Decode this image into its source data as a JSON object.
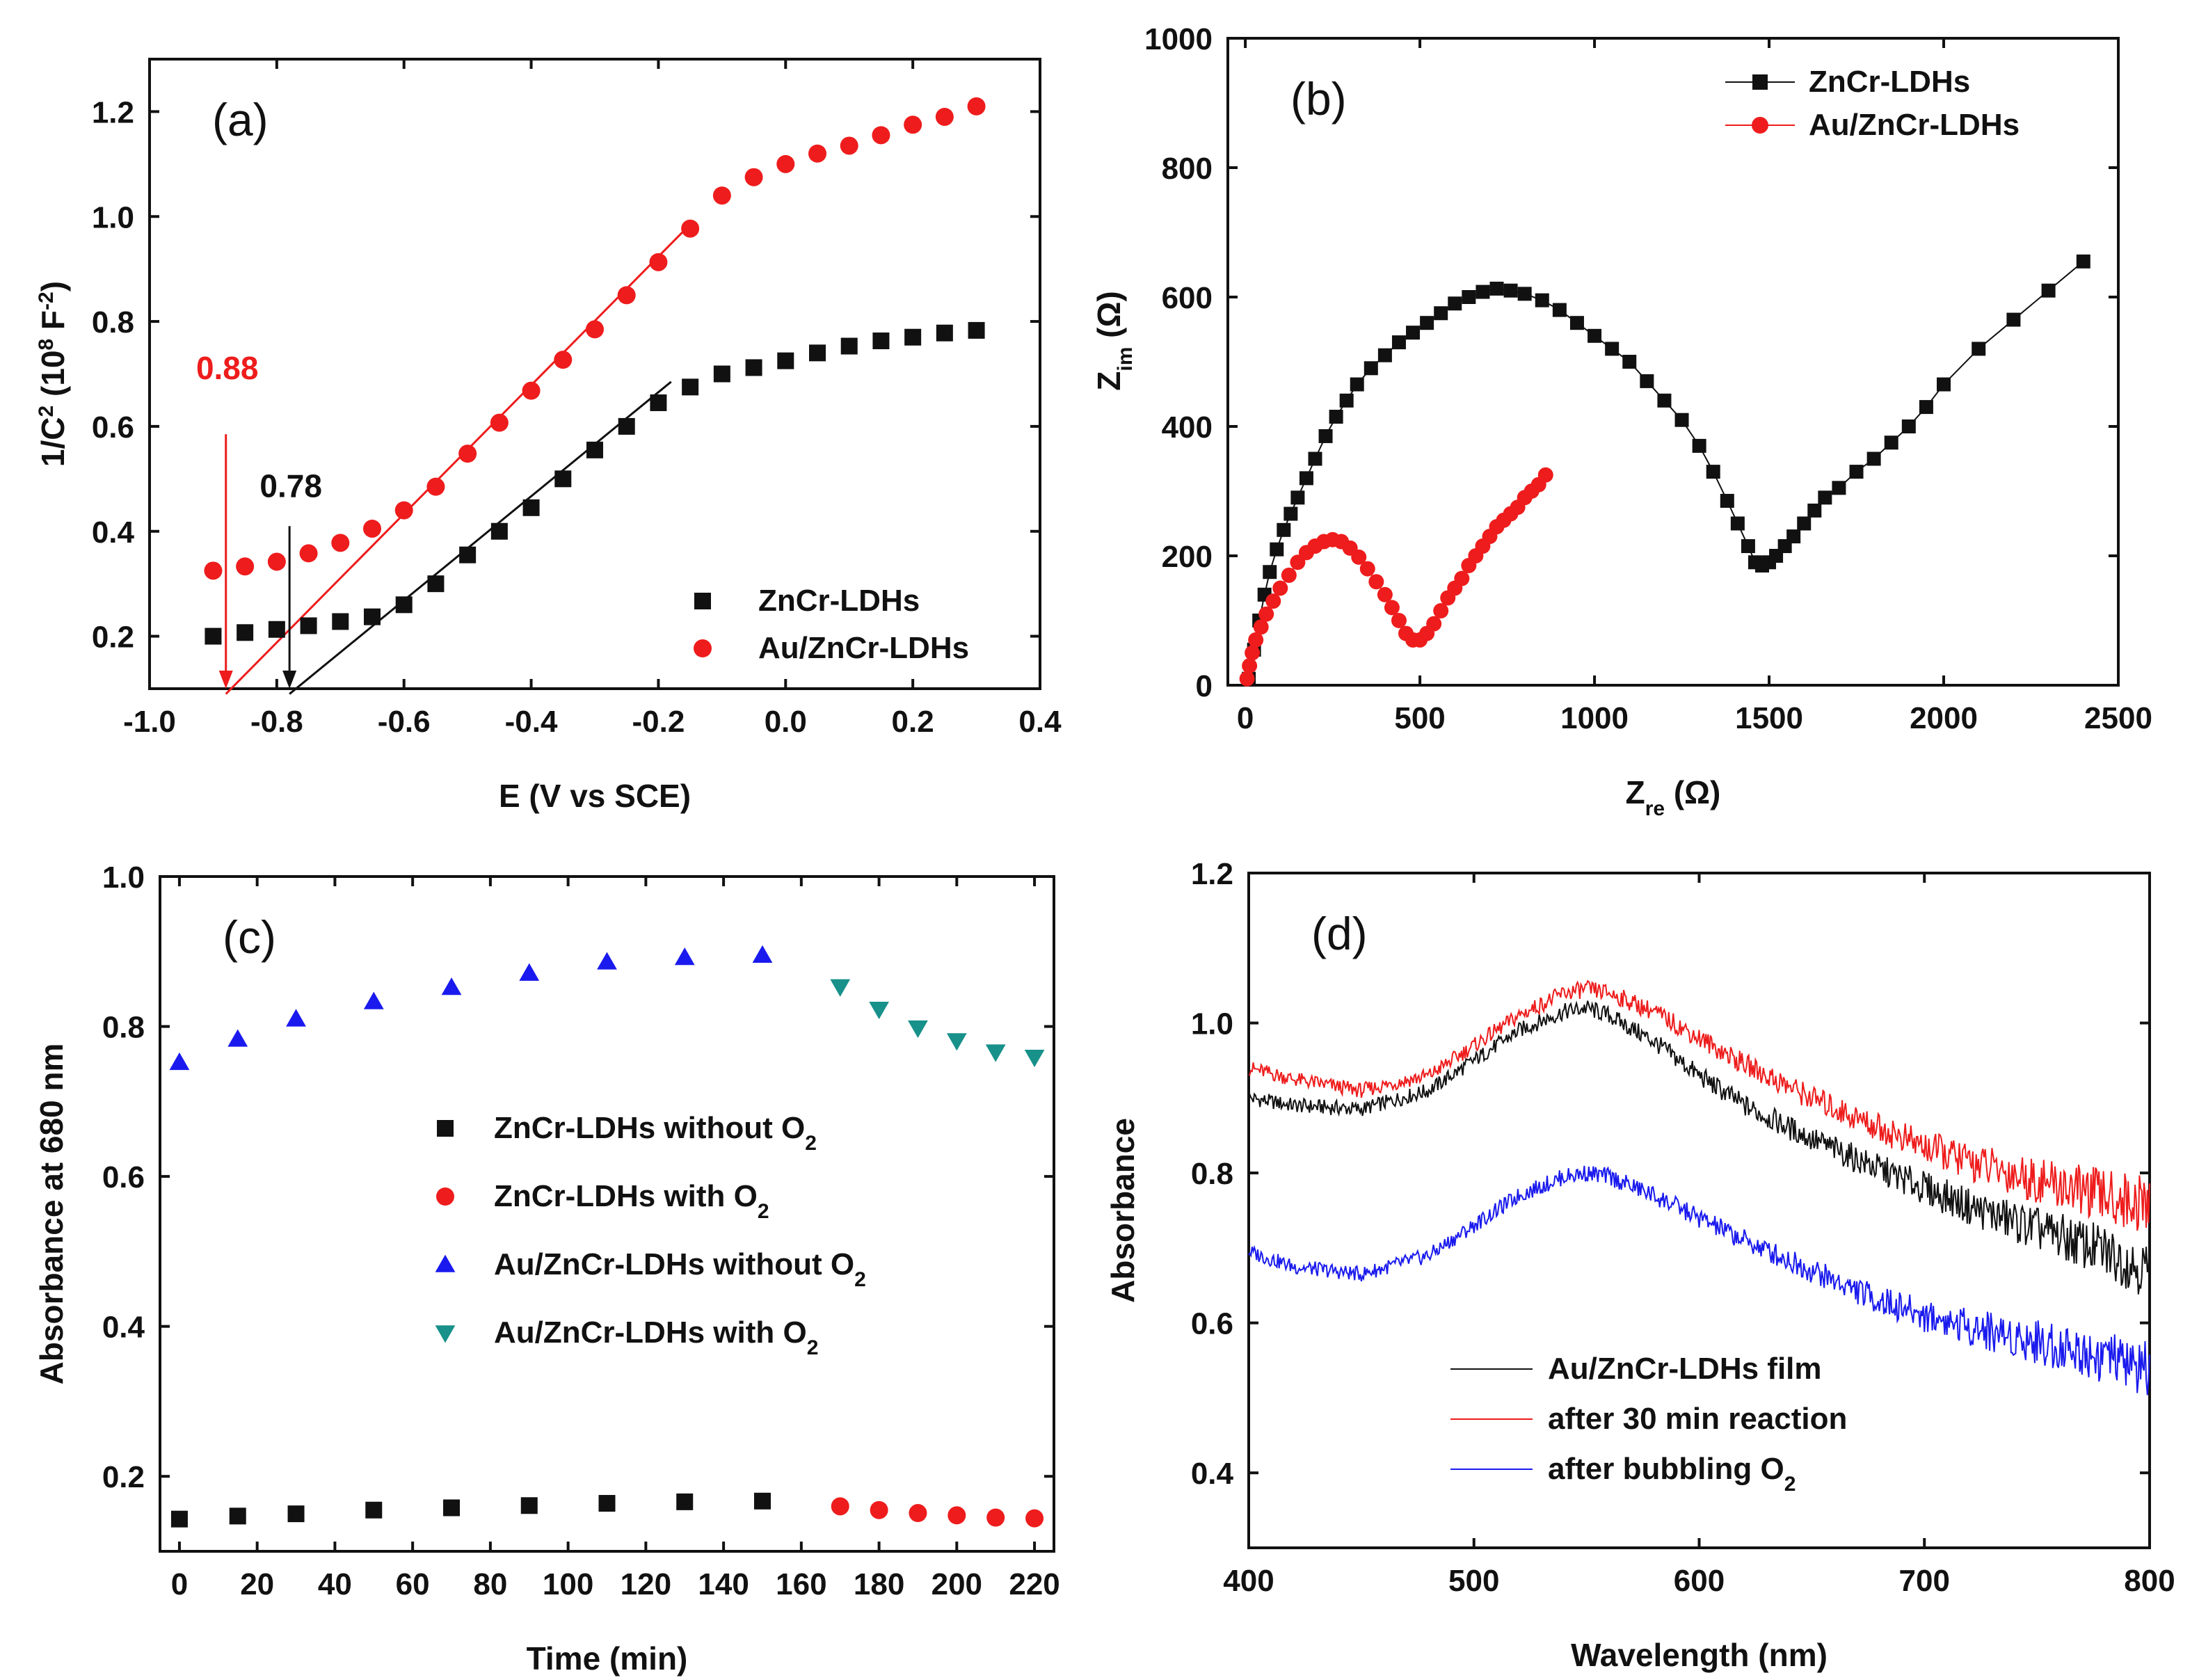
{
  "chart_data": [
    {
      "id": "a",
      "type": "scatter",
      "panel_label": "(a)",
      "xlabel": "E (V vs SCE)",
      "ylabel": "1/C",
      "ylabel_sup": "2",
      "ylabel_units": " (10",
      "ylabel_units_sup": "8",
      "ylabel_units_rest": " F",
      "ylabel_units_sup2": "-2",
      "ylabel_close": ")",
      "xlim": [
        -1.0,
        0.4
      ],
      "ylim": [
        0.1,
        1.3
      ],
      "xticks": [
        -1.0,
        -0.8,
        -0.6,
        -0.4,
        -0.2,
        0.0,
        0.2,
        0.4
      ],
      "xtick_labels": [
        "-1.0",
        "-0.8",
        "-0.6",
        "-0.4",
        "-0.2",
        "0.0",
        "0.2",
        "0.4"
      ],
      "yticks": [
        0.2,
        0.4,
        0.6,
        0.8,
        1.0,
        1.2
      ],
      "ytick_labels": [
        "0.2",
        "0.4",
        "0.6",
        "0.8",
        "1.0",
        "1.2"
      ],
      "series": [
        {
          "name": "ZnCr-LDHs",
          "color": "#111111",
          "marker": "square",
          "x": [
            -0.9,
            -0.85,
            -0.8,
            -0.75,
            -0.7,
            -0.65,
            -0.6,
            -0.55,
            -0.5,
            -0.45,
            -0.4,
            -0.35,
            -0.3,
            -0.25,
            -0.2,
            -0.15,
            -0.1,
            -0.05,
            0.0,
            0.05,
            0.1,
            0.15,
            0.2,
            0.25,
            0.3
          ],
          "y": [
            0.2,
            0.207,
            0.213,
            0.22,
            0.228,
            0.237,
            0.26,
            0.3,
            0.355,
            0.4,
            0.445,
            0.5,
            0.555,
            0.6,
            0.645,
            0.675,
            0.7,
            0.712,
            0.725,
            0.74,
            0.753,
            0.763,
            0.77,
            0.778,
            0.783
          ]
        },
        {
          "name": "Au/ZnCr-LDHs",
          "color": "#ee1c1c",
          "marker": "circle",
          "x": [
            -0.9,
            -0.85,
            -0.8,
            -0.75,
            -0.7,
            -0.65,
            -0.6,
            -0.55,
            -0.5,
            -0.45,
            -0.4,
            -0.35,
            -0.3,
            -0.25,
            -0.2,
            -0.15,
            -0.1,
            -0.05,
            0.0,
            0.05,
            0.1,
            0.15,
            0.2,
            0.25,
            0.3
          ],
          "y": [
            0.325,
            0.333,
            0.342,
            0.358,
            0.378,
            0.405,
            0.44,
            0.485,
            0.548,
            0.607,
            0.668,
            0.727,
            0.785,
            0.85,
            0.913,
            0.977,
            1.04,
            1.075,
            1.1,
            1.12,
            1.135,
            1.155,
            1.175,
            1.19,
            1.21
          ]
        }
      ],
      "fit_lines": [
        {
          "color": "#111111",
          "x": [
            -0.78,
            -0.18
          ],
          "y": [
            0.09,
            0.685
          ]
        },
        {
          "color": "#ee1c1c",
          "x": [
            -0.88,
            -0.15
          ],
          "y": [
            0.09,
            0.985
          ]
        }
      ],
      "annotations": [
        {
          "text": "0.88",
          "color": "#ee1c1c",
          "x": -0.88,
          "y_text": 0.69,
          "y_arrow_start": 0.585,
          "y_arrow_end": 0.1
        },
        {
          "text": "0.78",
          "color": "#111111",
          "x": -0.78,
          "y_text": 0.465,
          "y_arrow_start": 0.41,
          "y_arrow_end": 0.1
        }
      ],
      "legend_position": "bottom-right"
    },
    {
      "id": "b",
      "type": "line",
      "panel_label": "(b)",
      "xlabel": "Z",
      "xlabel_sub": "re",
      "xlabel_units": " (Ω)",
      "ylabel": "Z",
      "ylabel_sub": "im",
      "ylabel_units": " (Ω)",
      "xlim": [
        -50,
        2500
      ],
      "ylim": [
        0,
        1000
      ],
      "xticks": [
        0,
        500,
        1000,
        1500,
        2000,
        2500
      ],
      "xtick_labels": [
        "0",
        "500",
        "1000",
        "1500",
        "2000",
        "2500"
      ],
      "yticks": [
        0,
        200,
        400,
        600,
        800,
        1000
      ],
      "ytick_labels": [
        "0",
        "200",
        "400",
        "600",
        "800",
        "1000"
      ],
      "series": [
        {
          "name": "ZnCr-LDHs",
          "color": "#111111",
          "marker": "square",
          "x": [
            10,
            25,
            40,
            55,
            70,
            90,
            110,
            130,
            150,
            175,
            200,
            230,
            260,
            290,
            320,
            360,
            400,
            440,
            480,
            520,
            560,
            600,
            640,
            680,
            720,
            760,
            800,
            850,
            900,
            950,
            1000,
            1050,
            1100,
            1150,
            1200,
            1250,
            1300,
            1340,
            1380,
            1410,
            1440,
            1460,
            1480,
            1500,
            1520,
            1545,
            1570,
            1600,
            1630,
            1660,
            1700,
            1750,
            1800,
            1850,
            1900,
            1950,
            2000,
            2100,
            2200,
            2300,
            2400
          ],
          "y": [
            10,
            55,
            100,
            140,
            175,
            210,
            240,
            265,
            290,
            320,
            350,
            385,
            415,
            440,
            465,
            490,
            510,
            530,
            545,
            560,
            575,
            590,
            600,
            608,
            613,
            610,
            605,
            595,
            580,
            560,
            540,
            520,
            500,
            470,
            440,
            410,
            370,
            330,
            285,
            250,
            215,
            190,
            185,
            190,
            200,
            215,
            230,
            250,
            270,
            290,
            305,
            330,
            350,
            375,
            400,
            430,
            465,
            520,
            565,
            610,
            655
          ]
        },
        {
          "name": "Au/ZnCr-LDHs",
          "color": "#ee1c1c",
          "marker": "circle",
          "x": [
            5,
            12,
            20,
            30,
            45,
            60,
            80,
            100,
            125,
            150,
            175,
            200,
            225,
            250,
            275,
            300,
            325,
            350,
            375,
            400,
            420,
            440,
            460,
            480,
            500,
            520,
            540,
            560,
            580,
            600,
            620,
            640,
            660,
            680,
            700,
            720,
            740,
            760,
            780,
            800,
            820,
            840,
            860
          ],
          "y": [
            10,
            30,
            50,
            70,
            90,
            110,
            130,
            150,
            170,
            190,
            205,
            215,
            222,
            225,
            222,
            212,
            198,
            180,
            160,
            140,
            120,
            100,
            80,
            70,
            70,
            80,
            95,
            115,
            135,
            150,
            165,
            185,
            200,
            215,
            230,
            245,
            255,
            265,
            275,
            290,
            300,
            310,
            325
          ]
        }
      ],
      "legend_position": "top-right"
    },
    {
      "id": "c",
      "type": "scatter",
      "panel_label": "(c)",
      "xlabel": "Time (min)",
      "ylabel": "Absorbance at 680 nm",
      "xlim": [
        -5,
        225
      ],
      "ylim": [
        0.1,
        1.0
      ],
      "xticks": [
        0,
        20,
        40,
        60,
        80,
        100,
        120,
        140,
        160,
        180,
        200,
        220
      ],
      "xtick_labels": [
        "0",
        "20",
        "40",
        "60",
        "80",
        "100",
        "120",
        "140",
        "160",
        "180",
        "200",
        "220"
      ],
      "yticks": [
        0.2,
        0.4,
        0.6,
        0.8,
        1.0
      ],
      "ytick_labels": [
        "0.2",
        "0.4",
        "0.6",
        "0.8",
        "1.0"
      ],
      "series": [
        {
          "name": "ZnCr-LDHs without O",
          "sub": "2",
          "color": "#111111",
          "marker": "square",
          "x": [
            0,
            15,
            30,
            50,
            70,
            90,
            110,
            130,
            150
          ],
          "y": [
            0.143,
            0.147,
            0.15,
            0.155,
            0.158,
            0.161,
            0.164,
            0.166,
            0.167
          ]
        },
        {
          "name": "ZnCr-LDHs with O",
          "sub": "2",
          "color": "#ee1c1c",
          "marker": "circle",
          "x": [
            170,
            180,
            190,
            200,
            210,
            220
          ],
          "y": [
            0.16,
            0.155,
            0.151,
            0.148,
            0.145,
            0.144
          ]
        },
        {
          "name": "Au/ZnCr-LDHs without O",
          "sub": "2",
          "color": "#1a1aee",
          "marker": "triangle-up",
          "x": [
            0,
            15,
            30,
            50,
            70,
            90,
            110,
            130,
            150
          ],
          "y": [
            0.752,
            0.783,
            0.81,
            0.833,
            0.852,
            0.871,
            0.886,
            0.892,
            0.895
          ]
        },
        {
          "name": "Au/ZnCr-LDHs with O",
          "sub": "2",
          "color": "#17918a",
          "marker": "triangle-down",
          "x": [
            170,
            180,
            190,
            200,
            210,
            220
          ],
          "y": [
            0.853,
            0.823,
            0.798,
            0.781,
            0.766,
            0.759
          ]
        }
      ],
      "legend_position": "center-right"
    },
    {
      "id": "d",
      "type": "line",
      "panel_label": "(d)",
      "xlabel": "Wavelength (nm)",
      "ylabel": "Absorbance",
      "xlim": [
        400,
        800
      ],
      "ylim": [
        0.3,
        1.2
      ],
      "xticks": [
        400,
        500,
        600,
        700,
        800
      ],
      "xtick_labels": [
        "400",
        "500",
        "600",
        "700",
        "800"
      ],
      "yticks": [
        0.4,
        0.6,
        0.8,
        1.0,
        1.2
      ],
      "ytick_labels": [
        "0.4",
        "0.6",
        "0.8",
        "1.0",
        "1.2"
      ],
      "series": [
        {
          "name": "Au/ZnCr-LDHs film",
          "color": "#111111",
          "x": [
            400,
            420,
            450,
            480,
            500,
            520,
            540,
            550,
            560,
            580,
            600,
            620,
            650,
            680,
            700,
            720,
            750,
            780,
            800
          ],
          "y": [
            0.9,
            0.89,
            0.885,
            0.91,
            0.95,
            0.99,
            1.015,
            1.02,
            1.01,
            0.975,
            0.93,
            0.89,
            0.845,
            0.805,
            0.78,
            0.755,
            0.725,
            0.695,
            0.67
          ]
        },
        {
          "name": "after 30 min reaction",
          "color": "#ee1c1c",
          "x": [
            400,
            420,
            450,
            480,
            500,
            520,
            540,
            550,
            560,
            580,
            600,
            620,
            650,
            680,
            700,
            720,
            750,
            780,
            800
          ],
          "y": [
            0.94,
            0.925,
            0.91,
            0.93,
            0.97,
            1.01,
            1.04,
            1.045,
            1.04,
            1.015,
            0.98,
            0.945,
            0.9,
            0.86,
            0.835,
            0.815,
            0.79,
            0.77,
            0.755
          ]
        },
        {
          "name": "after bubbling O",
          "sub": "2",
          "color": "#1a1aee",
          "x": [
            400,
            420,
            450,
            480,
            500,
            520,
            540,
            550,
            560,
            580,
            600,
            620,
            650,
            680,
            700,
            720,
            750,
            780,
            800
          ],
          "y": [
            0.695,
            0.675,
            0.665,
            0.69,
            0.73,
            0.77,
            0.795,
            0.8,
            0.795,
            0.77,
            0.74,
            0.71,
            0.67,
            0.63,
            0.61,
            0.595,
            0.575,
            0.555,
            0.535
          ]
        }
      ],
      "legend_position": "bottom-center"
    }
  ]
}
